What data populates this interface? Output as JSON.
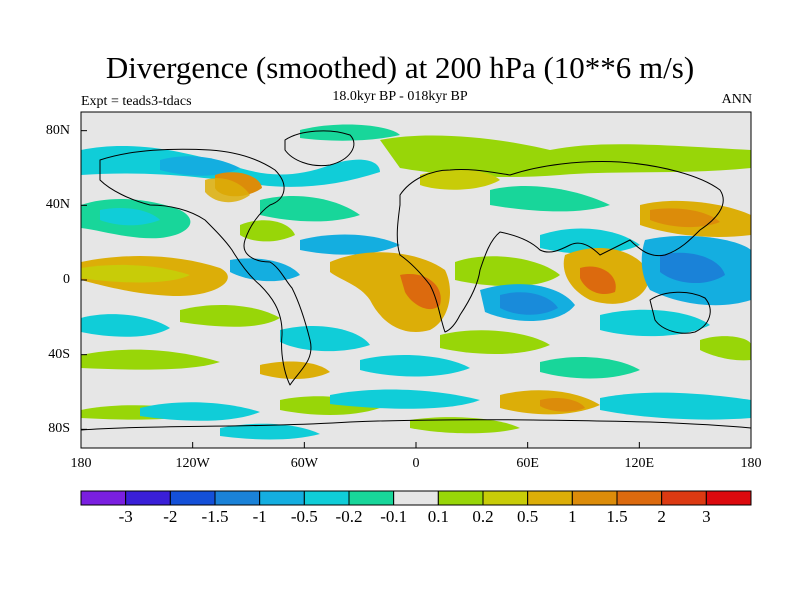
{
  "title": "Divergence (smoothed) at 200 hPa (10**6 m/s)",
  "subtitle": "18.0kyr BP - 018kyr BP",
  "experiment": "Expt = teads3-tdacs",
  "season": "ANN",
  "axes": {
    "lat_labels": [
      "80N",
      "40N",
      "0",
      "40S",
      "80S"
    ],
    "lon_labels": [
      "180",
      "120W",
      "60W",
      "0",
      "60E",
      "120E",
      "180"
    ]
  },
  "colorbar": {
    "colors": [
      "#7a1fe0",
      "#3a1fd8",
      "#1450d8",
      "#1a82d8",
      "#14aee0",
      "#10cdd8",
      "#18d69a",
      "#e6e6e6",
      "#98d608",
      "#c8cc08",
      "#dcae08",
      "#dc8c0a",
      "#dc6a0e",
      "#dc3a12",
      "#dc0a0e"
    ],
    "labels": [
      "-3",
      "-2",
      "-1.5",
      "-1",
      "-0.5",
      "-0.2",
      "-0.1",
      "0.1",
      "0.2",
      "0.5",
      "1",
      "1.5",
      "2",
      "3"
    ]
  },
  "colors": {
    "background": "#e6e6e6",
    "coast": "#000000"
  }
}
